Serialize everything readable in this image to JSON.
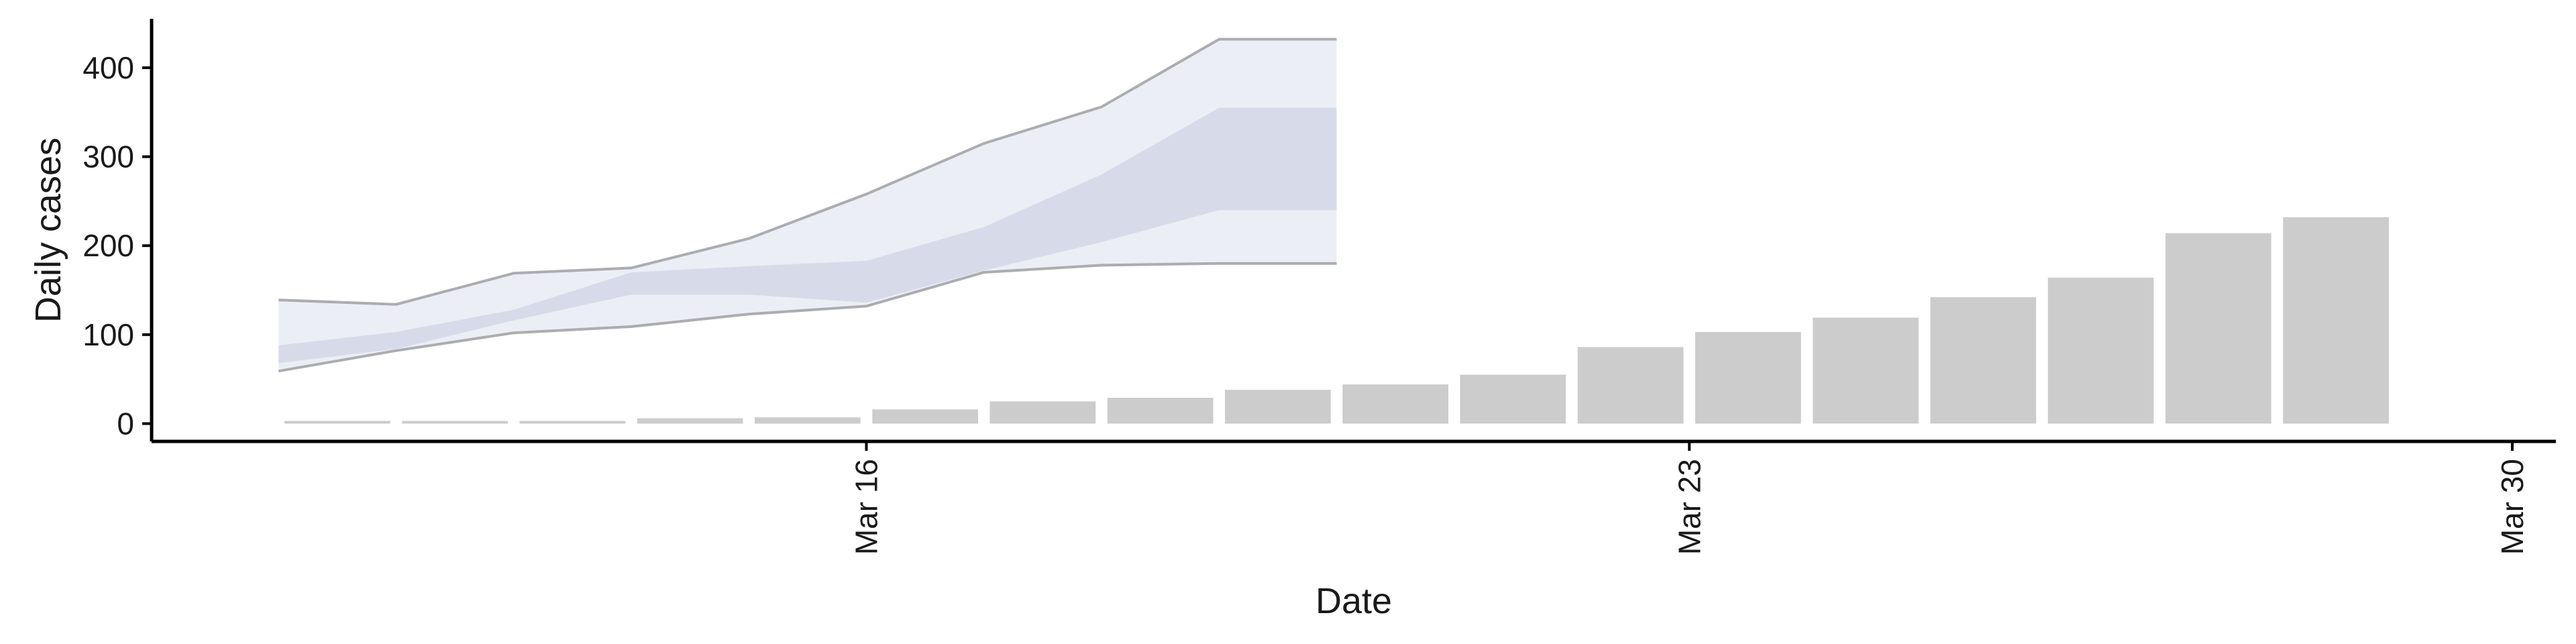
{
  "chart_data": {
    "type": "bar",
    "title": "",
    "xlabel": "Date",
    "ylabel": "Daily cases",
    "ylim": [
      -20,
      455
    ],
    "xlim": [
      "2020-03-10",
      "2020-03-30"
    ],
    "y_ticks": [
      0,
      100,
      200,
      300,
      400
    ],
    "x_ticks": [
      {
        "date": "2020-03-16",
        "label": "Mar 16"
      },
      {
        "date": "2020-03-23",
        "label": "Mar 23"
      },
      {
        "date": "2020-03-30",
        "label": "Mar 30"
      }
    ],
    "grid": false,
    "legend": "none",
    "bar_color": "#cccccc",
    "bars": {
      "dates": [
        "2020-03-11",
        "2020-03-12",
        "2020-03-13",
        "2020-03-14",
        "2020-03-15",
        "2020-03-16",
        "2020-03-17",
        "2020-03-18",
        "2020-03-19",
        "2020-03-20",
        "2020-03-21",
        "2020-03-22",
        "2020-03-23",
        "2020-03-24",
        "2020-03-25",
        "2020-03-26",
        "2020-03-27",
        "2020-03-28"
      ],
      "values": [
        3,
        3,
        3,
        6,
        7,
        16,
        25,
        29,
        38,
        44,
        55,
        86,
        103,
        119,
        142,
        164,
        214,
        232
      ]
    },
    "forecast": {
      "dates": [
        "2020-03-11",
        "2020-03-12",
        "2020-03-13",
        "2020-03-14",
        "2020-03-15",
        "2020-03-16",
        "2020-03-17",
        "2020-03-18",
        "2020-03-19",
        "2020-03-20"
      ],
      "outer_upper": [
        139,
        134,
        169,
        175,
        208,
        258,
        315,
        356,
        432,
        432
      ],
      "outer_lower": [
        59,
        82,
        102,
        109,
        123,
        132,
        170,
        178,
        180,
        180
      ],
      "inner_upper": [
        88,
        103,
        128,
        170,
        177,
        183,
        221,
        280,
        355,
        355
      ],
      "inner_lower": [
        68,
        84,
        116,
        145,
        145,
        136,
        172,
        204,
        240,
        240
      ],
      "outer_fill": "#e9ebf3",
      "inner_fill": "#d3d7e6",
      "line_color": "#9a9a9f"
    }
  }
}
